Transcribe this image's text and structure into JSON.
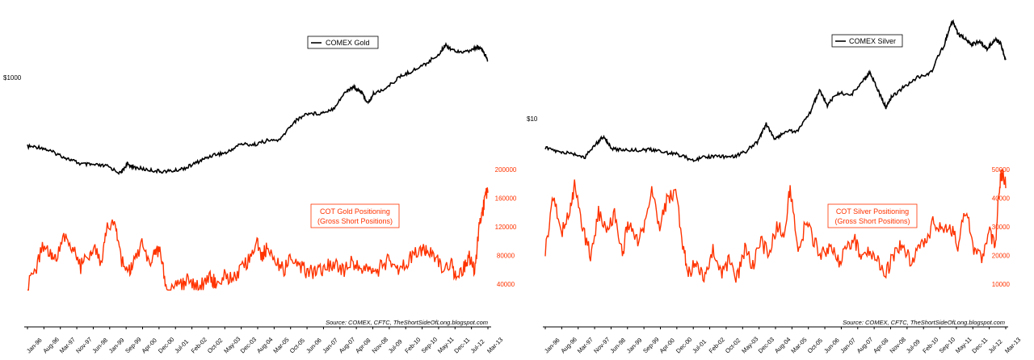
{
  "chart_data": [
    {
      "type": "line",
      "id": "gold",
      "title": "",
      "source": "Source: COMEX, CFTC, TheShortSideOfLong.blogspot.com",
      "x_tick_labels": [
        "Jan-96",
        "Aug-96",
        "Mar-97",
        "Nov-97",
        "Jun-98",
        "Jan-99",
        "Sep-99",
        "Apr-00",
        "Dec-00",
        "Jul-01",
        "Feb-02",
        "Oct-02",
        "May-03",
        "Dec-03",
        "Aug-04",
        "Mar-05",
        "Oct-05",
        "Jun-06",
        "Jan-07",
        "Aug-07",
        "Apr-08",
        "Nov-08",
        "Jul-09",
        "Feb-10",
        "Sep-10",
        "May-11",
        "Dec-11",
        "Jul-12",
        "Mar-13"
      ],
      "x_range": [
        1996.0,
        2013.3
      ],
      "price": {
        "name": "COMEX Gold",
        "scale": "log",
        "tick_labels": [
          {
            "label": "$1000",
            "value": 1000
          }
        ],
        "ylim": [
          230,
          2300
        ],
        "color": "#000000",
        "x": [
          1996.0,
          1996.5,
          1997.0,
          1997.5,
          1998.0,
          1998.5,
          1999.0,
          1999.5,
          1999.75,
          2000.0,
          2000.5,
          2001.0,
          2001.5,
          2002.0,
          2002.5,
          2003.0,
          2003.5,
          2004.0,
          2004.5,
          2005.0,
          2005.5,
          2006.0,
          2006.5,
          2007.0,
          2007.5,
          2008.0,
          2008.25,
          2008.5,
          2008.8,
          2009.0,
          2009.5,
          2010.0,
          2010.5,
          2011.0,
          2011.5,
          2011.7,
          2012.0,
          2012.5,
          2012.9,
          2013.1,
          2013.3
        ],
        "values": [
          390,
          385,
          355,
          325,
          300,
          295,
          290,
          260,
          300,
          285,
          275,
          268,
          270,
          285,
          315,
          345,
          355,
          405,
          400,
          425,
          430,
          560,
          640,
          640,
          690,
          900,
          950,
          900,
          740,
          860,
          940,
          1110,
          1220,
          1360,
          1580,
          1800,
          1650,
          1610,
          1730,
          1650,
          1420
        ]
      },
      "positioning": {
        "name": "COT Gold Positioning\n(Gross Short Positions)",
        "color": "#ff3300",
        "tick_labels": [
          "40000",
          "80000",
          "120000",
          "160000",
          "200000"
        ],
        "ylim": [
          20000,
          200000
        ],
        "x": [
          1996.0,
          1996.3,
          1996.6,
          1996.9,
          1997.1,
          1997.4,
          1997.7,
          1998.0,
          1998.3,
          1998.5,
          1998.8,
          1999.0,
          1999.3,
          1999.5,
          1999.8,
          2000.0,
          2000.3,
          2000.6,
          2000.8,
          2001.0,
          2001.2,
          2001.5,
          2001.8,
          2002.0,
          2002.3,
          2002.6,
          2002.9,
          2003.1,
          2003.4,
          2003.7,
          2004.0,
          2004.3,
          2004.6,
          2004.8,
          2005.0,
          2005.3,
          2005.6,
          2005.9,
          2006.2,
          2006.5,
          2006.8,
          2007.0,
          2007.3,
          2007.6,
          2007.9,
          2008.2,
          2008.5,
          2008.8,
          2009.0,
          2009.3,
          2009.6,
          2009.9,
          2010.2,
          2010.5,
          2010.8,
          2011.0,
          2011.3,
          2011.6,
          2011.9,
          2012.1,
          2012.4,
          2012.6,
          2012.8,
          2012.95,
          2013.1,
          2013.2,
          2013.3
        ],
        "values": [
          35000,
          60000,
          95000,
          80000,
          75000,
          110000,
          90000,
          65000,
          80000,
          95000,
          70000,
          120000,
          130000,
          75000,
          55000,
          70000,
          95000,
          60000,
          85000,
          90000,
          30000,
          42000,
          38000,
          45000,
          35000,
          40000,
          50000,
          38000,
          55000,
          45000,
          60000,
          75000,
          100000,
          80000,
          90000,
          70000,
          60000,
          75000,
          65000,
          58000,
          55000,
          60000,
          65000,
          70000,
          58000,
          72000,
          62000,
          68000,
          55000,
          65000,
          75000,
          62000,
          70000,
          80000,
          85000,
          90000,
          78000,
          60000,
          70000,
          50000,
          65000,
          80000,
          55000,
          115000,
          140000,
          160000,
          170000
        ]
      }
    },
    {
      "type": "line",
      "id": "silver",
      "title": "",
      "source": "Source: COMEX, CFTC, TheShortSideOfLong.blogspot.com",
      "x_tick_labels": [
        "Jan-96",
        "Aug-96",
        "Mar-97",
        "Nov-97",
        "Jun-98",
        "Jan-99",
        "Sep-99",
        "Apr-00",
        "Dec-00",
        "Jul-01",
        "Feb-02",
        "Oct-02",
        "May-03",
        "Dec-03",
        "Aug-04",
        "Mar-05",
        "Oct-05",
        "Jun-06",
        "Jan-07",
        "Aug-07",
        "Apr-08",
        "Nov-08",
        "Jul-09",
        "Feb-10",
        "Sep-10",
        "May-11",
        "Dec-11",
        "Jul-12",
        "Mar-13"
      ],
      "x_range": [
        1996.0,
        2013.3
      ],
      "price": {
        "name": "COMEX Silver",
        "scale": "log",
        "tick_labels": [
          {
            "label": "$10",
            "value": 10
          }
        ],
        "ylim": [
          3.5,
          50
        ],
        "color": "#000000",
        "x": [
          1996.0,
          1996.5,
          1997.0,
          1997.5,
          1998.0,
          1998.2,
          1998.5,
          1999.0,
          1999.5,
          2000.0,
          2000.5,
          2001.0,
          2001.5,
          2002.0,
          2002.5,
          2003.0,
          2003.5,
          2004.0,
          2004.3,
          2004.6,
          2005.0,
          2005.5,
          2006.0,
          2006.3,
          2006.6,
          2007.0,
          2007.5,
          2008.0,
          2008.2,
          2008.5,
          2008.8,
          2009.0,
          2009.5,
          2010.0,
          2010.5,
          2011.0,
          2011.3,
          2011.5,
          2011.8,
          2012.0,
          2012.3,
          2012.6,
          2012.9,
          2013.1,
          2013.3
        ],
        "values": [
          5.4,
          5.0,
          4.9,
          4.6,
          6.0,
          6.5,
          5.3,
          5.2,
          5.2,
          5.2,
          5.0,
          4.8,
          4.4,
          4.6,
          4.7,
          4.6,
          5.0,
          6.0,
          8.0,
          6.2,
          7.0,
          7.2,
          10.0,
          14.0,
          11.0,
          13.5,
          13.0,
          17.0,
          19.0,
          14.0,
          10.5,
          12.5,
          15.0,
          17.5,
          19.0,
          30.0,
          45.0,
          36.0,
          33.0,
          30.0,
          32.0,
          28.0,
          33.0,
          31.0,
          23.0
        ]
      },
      "positioning": {
        "name": "COT Silver Positioning\n(Gross Short Positions)",
        "color": "#ff3300",
        "tick_labels": [
          "10000",
          "20000",
          "30000",
          "40000",
          "50000"
        ],
        "ylim": [
          5000,
          50000
        ],
        "x": [
          1996.0,
          1996.3,
          1996.6,
          1996.9,
          1997.1,
          1997.4,
          1997.7,
          1998.0,
          1998.3,
          1998.6,
          1998.9,
          1999.1,
          1999.4,
          1999.7,
          2000.0,
          2000.3,
          2000.6,
          2000.9,
          2001.2,
          2001.4,
          2001.7,
          2002.0,
          2002.3,
          2002.6,
          2002.9,
          2003.2,
          2003.5,
          2003.8,
          2004.1,
          2004.4,
          2004.7,
          2005.0,
          2005.2,
          2005.5,
          2005.8,
          2006.1,
          2006.4,
          2006.7,
          2007.0,
          2007.3,
          2007.6,
          2007.9,
          2008.2,
          2008.5,
          2008.8,
          2009.1,
          2009.4,
          2009.7,
          2010.0,
          2010.3,
          2010.6,
          2010.9,
          2011.2,
          2011.5,
          2011.8,
          2012.1,
          2012.4,
          2012.7,
          2012.9,
          2013.05,
          2013.15,
          2013.3
        ],
        "values": [
          22000,
          40000,
          28000,
          35000,
          44000,
          30000,
          20000,
          35000,
          28000,
          34000,
          20000,
          32000,
          25000,
          28000,
          42000,
          30000,
          40000,
          43000,
          22000,
          14000,
          18000,
          12000,
          22000,
          14000,
          18000,
          12000,
          22000,
          16000,
          25000,
          20000,
          30000,
          28000,
          44000,
          20000,
          32000,
          25000,
          20000,
          24000,
          18000,
          22000,
          26000,
          18000,
          22000,
          18000,
          14000,
          20000,
          24000,
          18000,
          22000,
          25000,
          32000,
          28000,
          30000,
          24000,
          36000,
          22000,
          20000,
          28000,
          22000,
          44000,
          49000,
          45000
        ]
      }
    }
  ]
}
